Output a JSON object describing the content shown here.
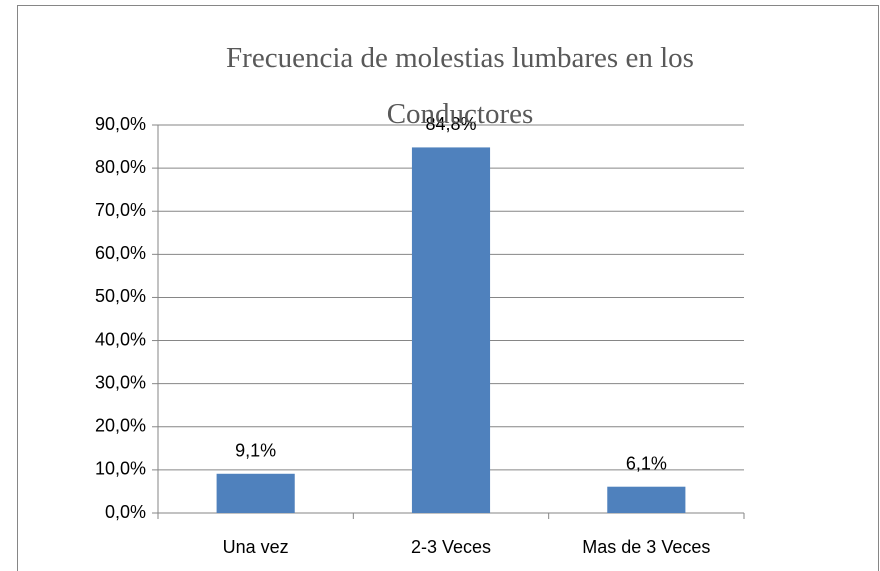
{
  "chart_data": {
    "type": "bar",
    "title": "Frecuencia de molestias lumbares en los Conductores",
    "categories": [
      "Una vez",
      "2-3 Veces",
      "Mas de 3 Veces"
    ],
    "values": [
      9.1,
      84.8,
      6.1
    ],
    "value_labels": [
      "9,1%",
      "84,8%",
      "6,1%"
    ],
    "color": "#4f81bd",
    "ylim": [
      0,
      90
    ],
    "yticks": [
      {
        "value": 0,
        "label": "0,0%"
      },
      {
        "value": 10,
        "label": "10,0%"
      },
      {
        "value": 20,
        "label": "20,0%"
      },
      {
        "value": 30,
        "label": "30,0%"
      },
      {
        "value": 40,
        "label": "40,0%"
      },
      {
        "value": 50,
        "label": "50,0%"
      },
      {
        "value": 60,
        "label": "60,0%"
      },
      {
        "value": 70,
        "label": "70,0%"
      },
      {
        "value": 80,
        "label": "80,0%"
      },
      {
        "value": 90,
        "label": "90,0%"
      }
    ],
    "grid": true
  }
}
